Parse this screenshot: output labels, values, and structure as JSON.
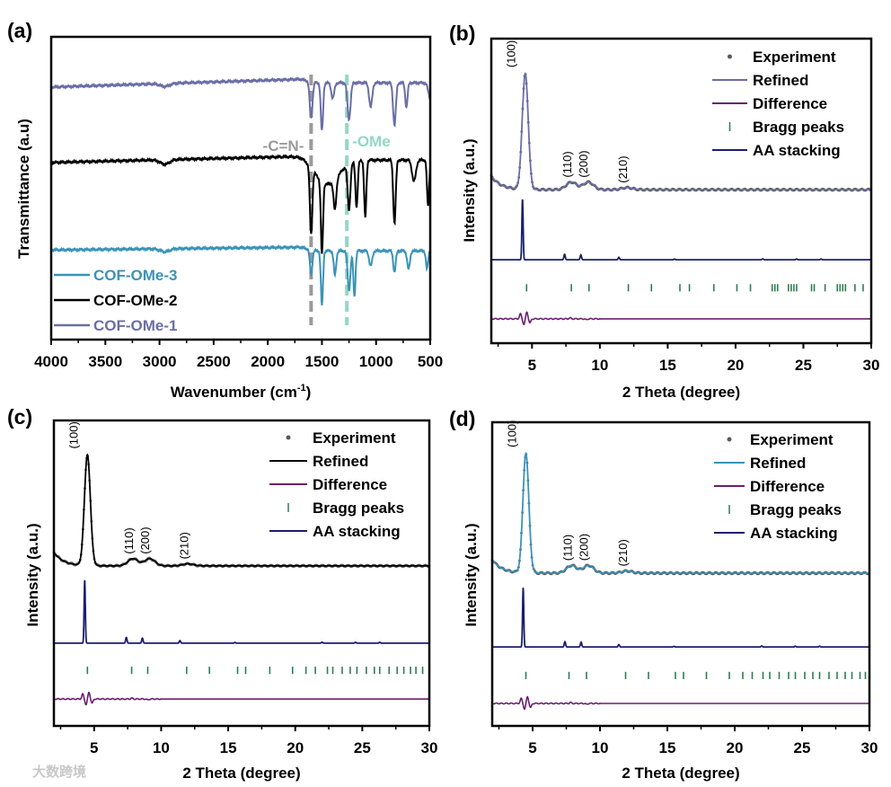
{
  "watermark": "大数跨境",
  "chart_data": [
    {
      "panel": "(a)",
      "type": "line",
      "xlabel": "Wavenumber (cm",
      "xlabel_sup": "-1",
      "xlabel_end": ")",
      "ylabel": "Transmittance (a.u)",
      "xlim": [
        4000,
        500
      ],
      "ylim": [
        0,
        100
      ],
      "xticks": [
        4000,
        3500,
        3000,
        2500,
        2000,
        1500,
        1000,
        500
      ],
      "xtick_labels": [
        "4000",
        "3500",
        "3000",
        "2500",
        "2000",
        "1500",
        "1000",
        "500"
      ],
      "legend": [
        "COF-OMe-3",
        "COF-OMe-2",
        "COF-OMe-1"
      ],
      "series": [
        {
          "name": "COF-OMe-1",
          "color": "#6a6ea6",
          "baseline": [
            83.4,
            86.0
          ],
          "dips": [
            [
              2950,
              1,
              60
            ],
            [
              1600,
              12,
              18
            ],
            [
              1500,
              16,
              15
            ],
            [
              1400,
              5,
              20
            ],
            [
              1250,
              12,
              20
            ],
            [
              1050,
              8,
              20
            ],
            [
              830,
              14,
              18
            ],
            [
              720,
              8,
              15
            ],
            [
              500,
              5,
              25
            ]
          ]
        },
        {
          "name": "COF-OMe-2",
          "color": "#000000",
          "baseline": [
            58.5,
            60.5
          ],
          "dips": [
            [
              2950,
              1.5,
              60
            ],
            [
              1450,
              8,
              150
            ],
            [
              1600,
              22,
              16
            ],
            [
              1500,
              24,
              14
            ],
            [
              1380,
              10,
              18
            ],
            [
              1250,
              15,
              18
            ],
            [
              1180,
              15,
              15
            ],
            [
              1100,
              19,
              14
            ],
            [
              830,
              21,
              16
            ],
            [
              650,
              7,
              25
            ],
            [
              520,
              15,
              14
            ]
          ]
        },
        {
          "name": "COF-OMe-3",
          "color": "#3a93b8",
          "baseline": [
            29.6,
            30.5
          ],
          "dips": [
            [
              2950,
              1,
              60
            ],
            [
              1600,
              8,
              16
            ],
            [
              1500,
              18,
              14
            ],
            [
              1380,
              8,
              16
            ],
            [
              1250,
              13,
              18
            ],
            [
              1200,
              15,
              14
            ],
            [
              1050,
              5,
              20
            ],
            [
              830,
              7,
              16
            ],
            [
              700,
              6,
              18
            ],
            [
              530,
              6,
              14
            ]
          ]
        }
      ],
      "annotations": [
        {
          "text": "-C=N-",
          "x": 1600,
          "color": "#9a9a9a"
        },
        {
          "text": "-OMe",
          "x": 1270,
          "color": "#92d8c4"
        }
      ]
    },
    {
      "panel": "(b)",
      "type": "line",
      "xlabel": "2 Theta (degree)",
      "ylabel": "Intensity (a.u.)",
      "xlim": [
        2,
        30
      ],
      "ylim": [
        0,
        100
      ],
      "refined_color": "#6a6ea6",
      "xticks": [
        5,
        10,
        15,
        20,
        25,
        30
      ],
      "xtick_labels": [
        "5",
        "10",
        "15",
        "20",
        "25",
        "30"
      ],
      "legend": [
        "Experiment",
        "Refined",
        "Difference",
        "Bragg peaks",
        "AA stacking"
      ],
      "exp_base": 50.4,
      "main_peak_height": 38,
      "aa_base": 27.4,
      "aa_height": 19.8,
      "bragg_level": 18.2,
      "diff_base": 8.0,
      "hkl": [
        {
          "label": "(100)",
          "x": 4.3
        },
        {
          "label": "(110)",
          "x": 7.9
        },
        {
          "label": "(200)",
          "x": 9.1
        },
        {
          "label": "(210)",
          "x": 12.0
        }
      ],
      "bragg_peaks": [
        4.6,
        7.9,
        9.2,
        12.1,
        13.8,
        15.9,
        16.6,
        18.4,
        20.1,
        21.1,
        22.7,
        22.9,
        23.1,
        23.9,
        24.1,
        24.3,
        24.5,
        25.6,
        25.8,
        26.6,
        27.5,
        27.7,
        27.9,
        28.1,
        28.8,
        29.4
      ]
    },
    {
      "panel": "(c)",
      "type": "line",
      "xlabel": "2 Theta (degree)",
      "ylabel": "Intensity (a.u.)",
      "xlim": [
        2,
        30
      ],
      "ylim": [
        0,
        100
      ],
      "refined_color": "#000000",
      "xticks": [
        5,
        10,
        15,
        20,
        25,
        30
      ],
      "xtick_labels": [
        "5",
        "10",
        "15",
        "20",
        "25",
        "30"
      ],
      "legend": [
        "Experiment",
        "Refined",
        "Difference",
        "Bragg peaks",
        "AA stacking"
      ],
      "exp_base": 52.4,
      "main_peak_height": 36.2,
      "aa_base": 27.1,
      "aa_height": 20.6,
      "bragg_level": 18.2,
      "diff_base": 8.8,
      "hkl": [
        {
          "label": "(100)",
          "x": 4.3
        },
        {
          "label": "(110)",
          "x": 7.9
        },
        {
          "label": "(200)",
          "x": 9.1
        },
        {
          "label": "(210)",
          "x": 12.0
        }
      ],
      "bragg_peaks": [
        4.5,
        7.8,
        9.0,
        11.9,
        13.6,
        15.7,
        16.3,
        18.1,
        19.8,
        20.8,
        21.5,
        22.4,
        22.8,
        23.5,
        24.1,
        24.6,
        25.3,
        25.9,
        26.3,
        27.0,
        27.6,
        28.1,
        28.6,
        29.0,
        29.5
      ]
    },
    {
      "panel": "(d)",
      "type": "line",
      "xlabel": "2 Theta (degree)",
      "ylabel": "Intensity (a.u.)",
      "xlim": [
        2,
        30
      ],
      "ylim": [
        0,
        100
      ],
      "refined_color": "#3a93b8",
      "xticks": [
        5,
        10,
        15,
        20,
        25,
        30
      ],
      "xtick_labels": [
        "5",
        "10",
        "15",
        "20",
        "25",
        "30"
      ],
      "legend": [
        "Experiment",
        "Refined",
        "Difference",
        "Bragg peaks",
        "AA stacking"
      ],
      "exp_base": 50.3,
      "main_peak_height": 39.3,
      "aa_base": 26.0,
      "aa_height": 19.5,
      "bragg_level": 16.6,
      "diff_base": 7.4,
      "hkl": [
        {
          "label": "(100)",
          "x": 4.3
        },
        {
          "label": "(110)",
          "x": 7.9
        },
        {
          "label": "(200)",
          "x": 9.1
        },
        {
          "label": "(210)",
          "x": 12.0
        }
      ],
      "bragg_peaks": [
        4.5,
        7.7,
        9.0,
        11.9,
        13.6,
        15.6,
        16.2,
        17.9,
        19.6,
        20.6,
        21.3,
        22.1,
        22.6,
        23.3,
        24.0,
        24.5,
        25.2,
        25.8,
        26.3,
        27.0,
        27.6,
        28.2,
        28.7,
        29.3,
        29.7
      ]
    }
  ],
  "colors": {
    "experiment": "#5a5a5a",
    "difference": "#6b1e6e",
    "bragg": "#2e7d4f",
    "aa": "#1a1f6e",
    "axis": "#000000"
  }
}
